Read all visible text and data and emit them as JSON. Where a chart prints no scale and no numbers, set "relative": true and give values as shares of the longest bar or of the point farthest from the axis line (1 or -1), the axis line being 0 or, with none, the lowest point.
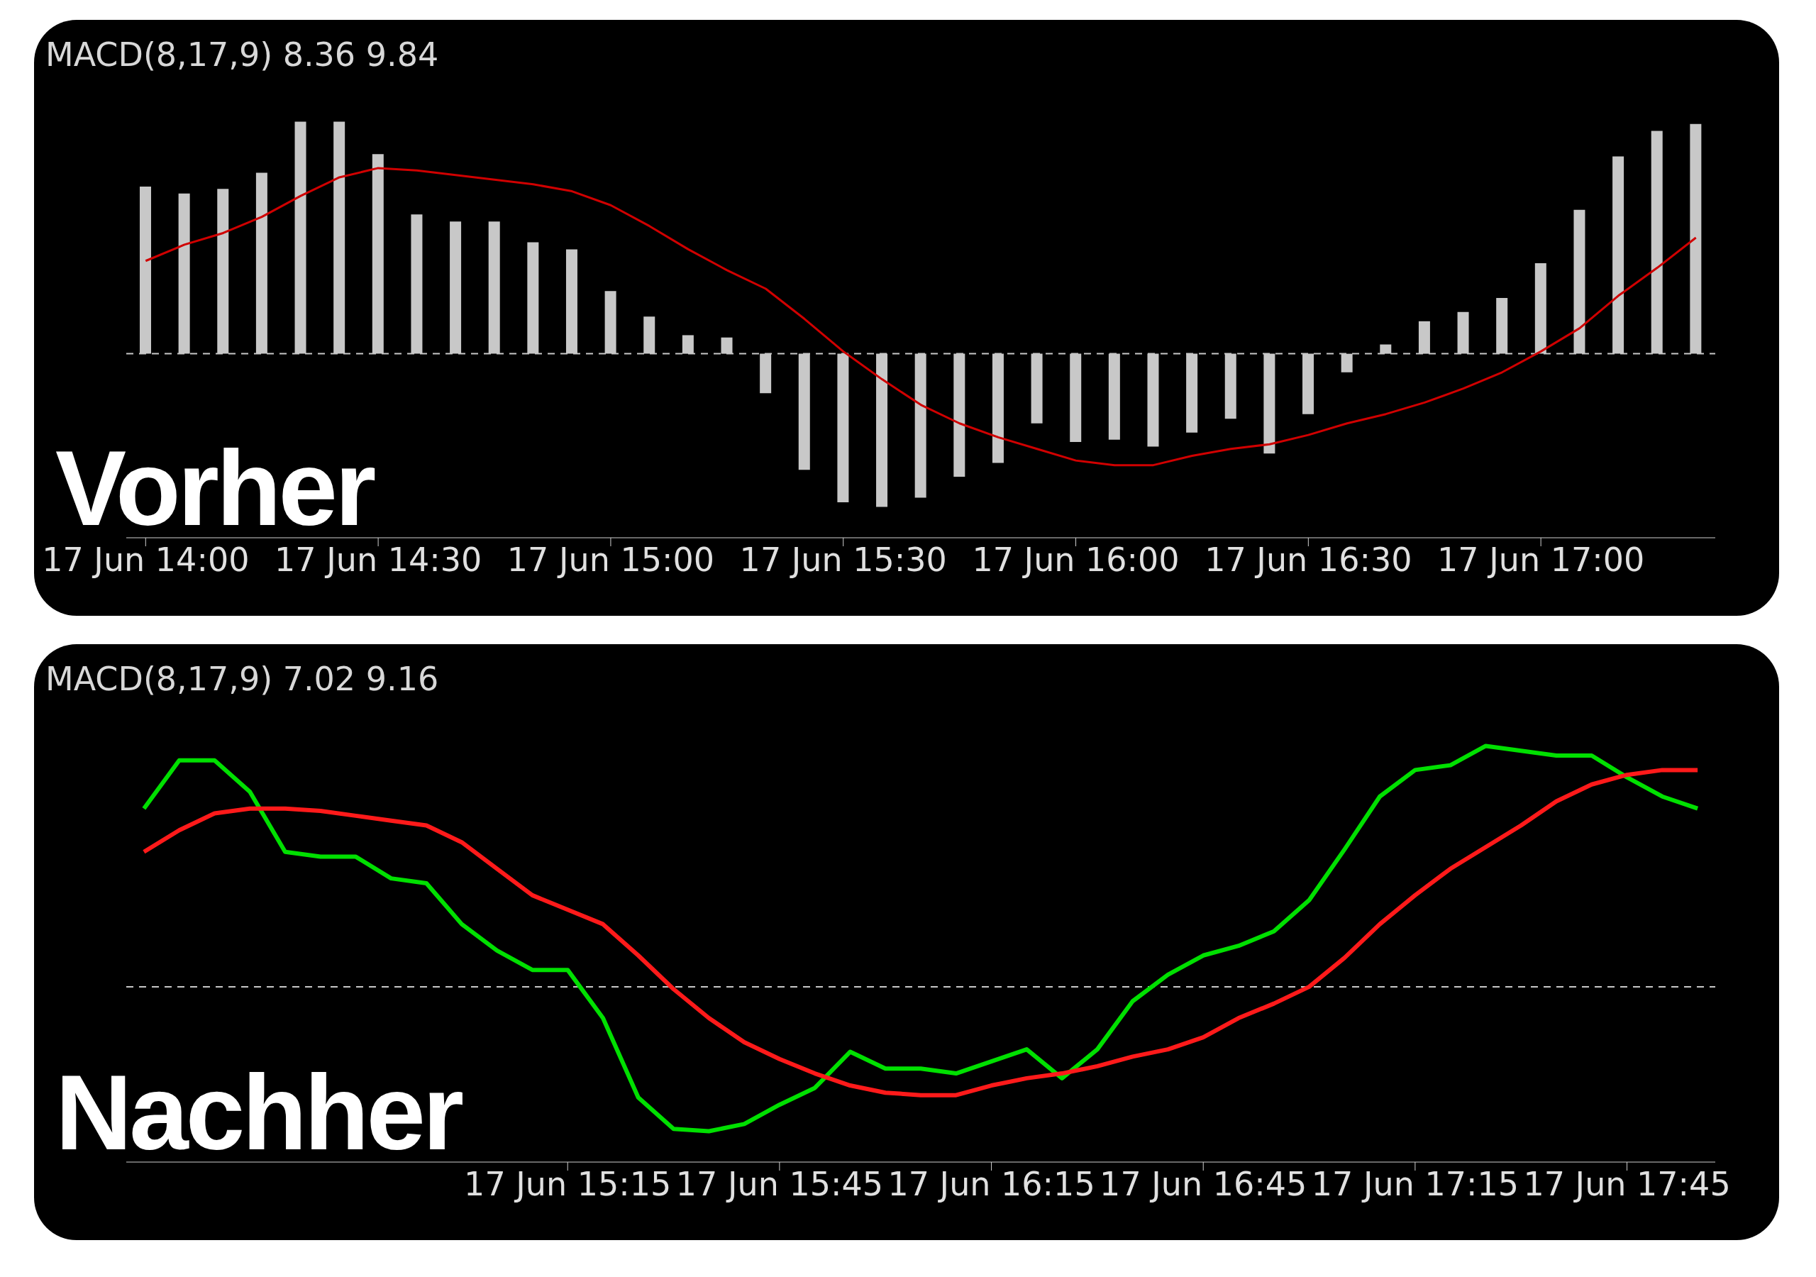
{
  "chart_data": [
    {
      "type": "bar",
      "title": "MACD(8,17,9) 8.36 9.84",
      "relative": true,
      "categories": [
        "17 Jun 14:00",
        null,
        null,
        null,
        null,
        null,
        "17 Jun 14:30",
        null,
        null,
        null,
        null,
        null,
        "17 Jun 15:00",
        null,
        null,
        null,
        null,
        null,
        "17 Jun 15:30",
        null,
        null,
        null,
        null,
        null,
        "17 Jun 16:00",
        null,
        null,
        null,
        null,
        null,
        "17 Jun 16:30",
        null,
        null,
        null,
        null,
        null,
        "17 Jun 17:00",
        null,
        null,
        null,
        null
      ],
      "series": [
        {
          "type": "bar",
          "color": "#c8c8c8",
          "values": [
            0.72,
            0.69,
            0.71,
            0.78,
            1.0,
            1.0,
            0.86,
            0.6,
            0.57,
            0.57,
            0.48,
            0.45,
            0.27,
            0.16,
            0.08,
            0.07,
            -0.17,
            -0.5,
            -0.64,
            -0.66,
            -0.62,
            -0.53,
            -0.47,
            -0.3,
            -0.38,
            -0.37,
            -0.4,
            -0.34,
            -0.28,
            -0.43,
            -0.26,
            -0.08,
            0.04,
            0.14,
            0.18,
            0.24,
            0.39,
            0.62,
            0.85,
            0.96,
            0.99
          ]
        },
        {
          "type": "line",
          "color": "#d00000",
          "values": [
            0.4,
            0.47,
            0.52,
            0.59,
            0.68,
            0.76,
            0.8,
            0.79,
            0.77,
            0.75,
            0.73,
            0.7,
            0.64,
            0.55,
            0.45,
            0.36,
            0.28,
            0.15,
            0.01,
            -0.11,
            -0.22,
            -0.3,
            -0.36,
            -0.41,
            -0.46,
            -0.48,
            -0.48,
            -0.44,
            -0.41,
            -0.39,
            -0.35,
            -0.3,
            -0.26,
            -0.21,
            -0.15,
            -0.08,
            0.01,
            0.11,
            0.25,
            0.37,
            0.5
          ]
        }
      ],
      "ref_lines": [
        {
          "axis": "y",
          "value": 0,
          "line_style": "dashed",
          "color": "#c8c8c8"
        }
      ],
      "annotations": [
        "Vorher"
      ]
    },
    {
      "type": "line",
      "title": "MACD(8,17,9) 7.02 9.16",
      "relative": true,
      "categories": [
        null,
        null,
        null,
        null,
        null,
        null,
        null,
        null,
        null,
        null,
        null,
        null,
        "17 Jun 15:15",
        null,
        null,
        null,
        null,
        null,
        "17 Jun 15:45",
        null,
        null,
        null,
        null,
        null,
        "17 Jun 16:15",
        null,
        null,
        null,
        null,
        null,
        "17 Jun 16:45",
        null,
        null,
        null,
        null,
        null,
        "17 Jun 17:15",
        null,
        null,
        null,
        null,
        null,
        "17 Jun 17:45",
        null,
        null
      ],
      "series": [
        {
          "color": "#00e000",
          "values": [
            0.74,
            0.94,
            0.94,
            0.81,
            0.56,
            0.54,
            0.54,
            0.45,
            0.43,
            0.26,
            0.15,
            0.07,
            0.07,
            -0.13,
            -0.46,
            -0.59,
            -0.6,
            -0.57,
            -0.49,
            -0.42,
            -0.27,
            -0.34,
            -0.34,
            -0.36,
            -0.31,
            -0.26,
            -0.38,
            -0.26,
            -0.06,
            0.05,
            0.13,
            0.17,
            0.23,
            0.36,
            0.57,
            0.79,
            0.9,
            0.92,
            1.0,
            0.98,
            0.96,
            0.96,
            0.87,
            0.79,
            0.74
          ]
        },
        {
          "color": "#ff1a1a",
          "values": [
            0.56,
            0.65,
            0.72,
            0.74,
            0.74,
            0.73,
            0.71,
            0.69,
            0.67,
            0.6,
            0.49,
            0.38,
            0.32,
            0.26,
            0.13,
            -0.01,
            -0.13,
            -0.23,
            -0.3,
            -0.36,
            -0.41,
            -0.44,
            -0.45,
            -0.45,
            -0.41,
            -0.38,
            -0.36,
            -0.33,
            -0.29,
            -0.26,
            -0.21,
            -0.13,
            -0.07,
            0,
            0.12,
            0.26,
            0.38,
            0.49,
            0.58,
            0.67,
            0.77,
            0.84,
            0.88,
            0.9,
            0.9
          ]
        }
      ],
      "ref_lines": [
        {
          "axis": "y",
          "value": 0,
          "line_style": "dashed",
          "color": "#c8c8c8"
        }
      ],
      "annotations": [
        "Nachher"
      ]
    }
  ]
}
